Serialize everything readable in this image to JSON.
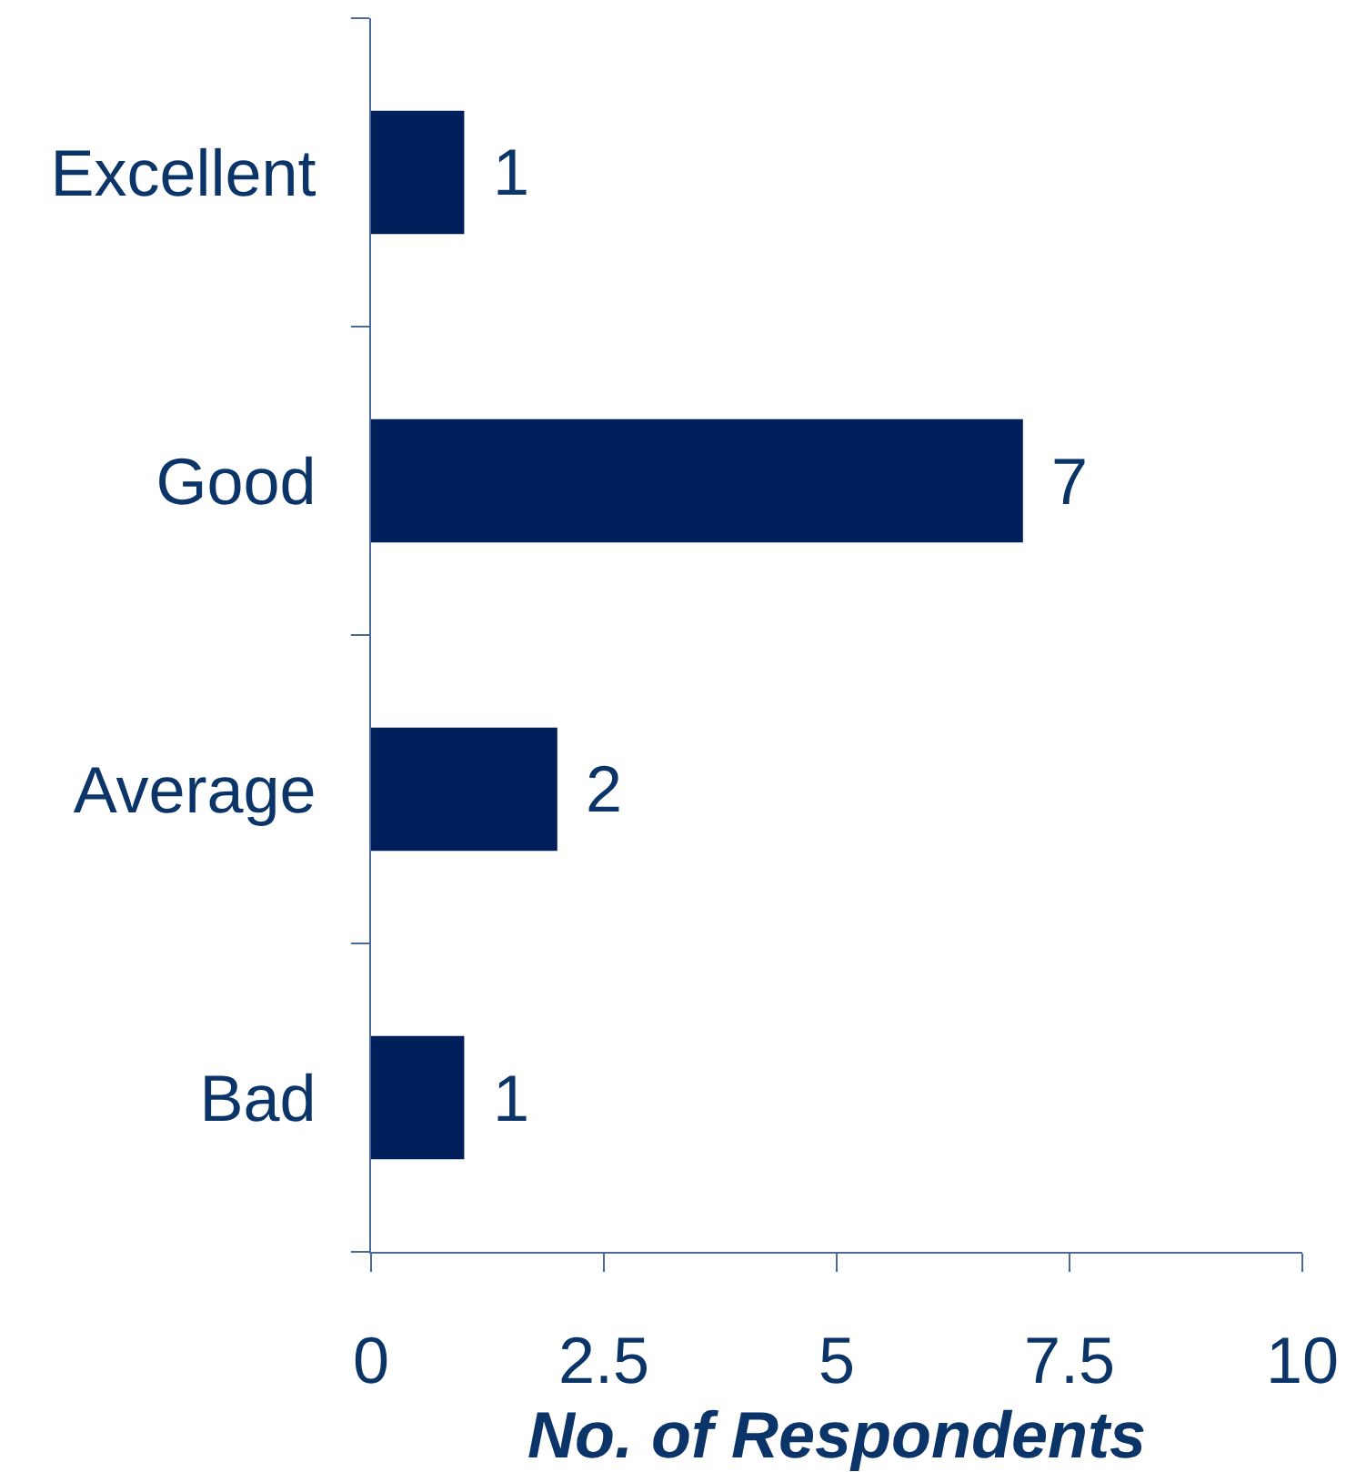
{
  "chart_data": {
    "type": "bar",
    "orientation": "horizontal",
    "categories": [
      "Excellent",
      "Good",
      "Average",
      "Bad"
    ],
    "values": [
      1,
      7,
      2,
      1
    ],
    "color": "#001f5b",
    "xlim": [
      0,
      10
    ],
    "xticks": [
      0,
      2.5,
      5,
      7.5,
      10
    ],
    "xlabel": "No. of Respondents",
    "data_labels": true,
    "grid": false
  }
}
